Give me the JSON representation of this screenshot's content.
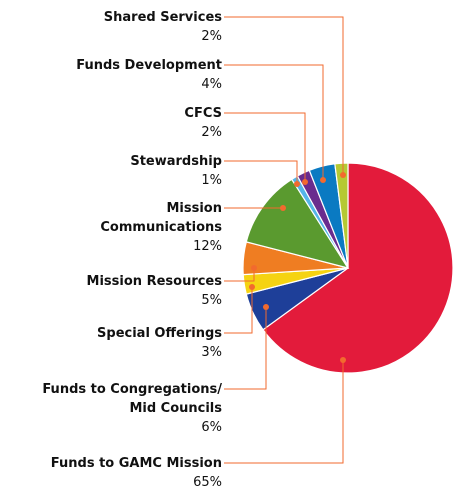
{
  "chart_data": {
    "type": "pie",
    "categories": [
      "Funds to GAMC Mission",
      "Funds to Congregations/\nMid Councils",
      "Special Offerings",
      "Mission Resources",
      "Mission\nCommunications",
      "Stewardship",
      "CFCS",
      "Funds Development",
      "Shared Services"
    ],
    "values": [
      65,
      6,
      3,
      5,
      12,
      1,
      2,
      4,
      2
    ],
    "value_labels": [
      "65%",
      "6%",
      "3%",
      "5%",
      "12%",
      "1%",
      "2%",
      "4%",
      "2%"
    ],
    "colors": [
      "#e31b3b",
      "#1e3f99",
      "#f5d312",
      "#ef7d22",
      "#5a9a2f",
      "#55b5e8",
      "#6a2c8e",
      "#0a7ac2",
      "#b5c933"
    ]
  }
}
